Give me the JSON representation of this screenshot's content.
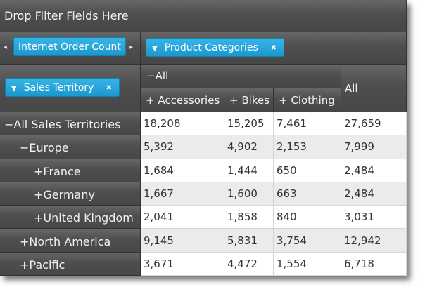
{
  "filter_area": {
    "placeholder": "Drop Filter Fields Here"
  },
  "measure_chip": {
    "label": "Internet Order Count",
    "prev": "◂",
    "next": "▸"
  },
  "column_chip": {
    "label": "Product Categories",
    "filter_icon": "▼",
    "remove_icon": "✖"
  },
  "row_chip": {
    "label": "Sales Territory",
    "filter_icon": "▼",
    "remove_icon": "✖"
  },
  "column_headers": {
    "top": {
      "toggle": "−",
      "label": "All"
    },
    "grand_total": "All",
    "items": [
      {
        "toggle": "+",
        "label": "Accessories"
      },
      {
        "toggle": "+",
        "label": "Bikes"
      },
      {
        "toggle": "+",
        "label": "Clothing"
      }
    ]
  },
  "rows": [
    {
      "toggle": "−",
      "label": "All Sales Territories",
      "level": 0,
      "values": [
        "18,208",
        "15,205",
        "7,461",
        "27,659"
      ]
    },
    {
      "toggle": "−",
      "label": "Europe",
      "level": 1,
      "values": [
        "5,392",
        "4,902",
        "2,153",
        "7,999"
      ]
    },
    {
      "toggle": "+",
      "label": "France",
      "level": 2,
      "values": [
        "1,684",
        "1,444",
        "650",
        "2,484"
      ]
    },
    {
      "toggle": "+",
      "label": "Germany",
      "level": 2,
      "values": [
        "1,667",
        "1,600",
        "663",
        "2,484"
      ]
    },
    {
      "toggle": "+",
      "label": "United Kingdom",
      "level": 2,
      "values": [
        "2,041",
        "1,858",
        "840",
        "3,031"
      ]
    },
    {
      "toggle": "+",
      "label": "North America",
      "level": 1,
      "values": [
        "9,145",
        "5,831",
        "3,754",
        "12,942"
      ]
    },
    {
      "toggle": "+",
      "label": "Pacific",
      "level": 1,
      "values": [
        "3,671",
        "4,472",
        "1,554",
        "6,718"
      ]
    }
  ]
}
